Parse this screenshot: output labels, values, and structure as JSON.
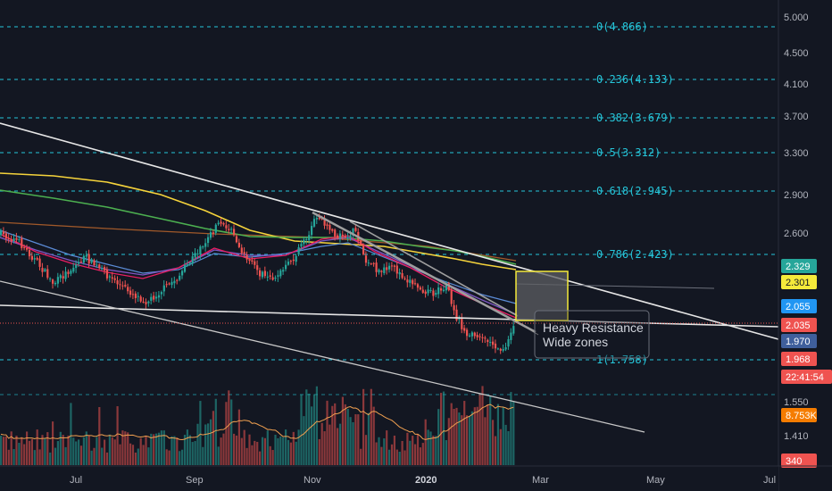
{
  "chart_data": {
    "type": "candlestick",
    "symbol_note": "",
    "y_axis": {
      "scale": "log",
      "ticks": [
        "5.000",
        "4.500",
        "4.100",
        "3.700",
        "3.300",
        "2.900",
        "2.600",
        "1.550",
        "1.410"
      ]
    },
    "x_axis": {
      "ticks": [
        {
          "label": "Jul",
          "bold": false
        },
        {
          "label": "Sep",
          "bold": false
        },
        {
          "label": "Nov",
          "bold": false
        },
        {
          "label": "2020",
          "bold": true
        },
        {
          "label": "Mar",
          "bold": false
        },
        {
          "label": "May",
          "bold": false
        },
        {
          "label": "Jul",
          "bold": false
        }
      ]
    },
    "fibonacci": {
      "color": "#26c6da",
      "levels": [
        {
          "label": "0(4.866)",
          "ratio": 0,
          "price": 4.866
        },
        {
          "label": "0.236(4.133)",
          "ratio": 0.236,
          "price": 4.133
        },
        {
          "label": "0.382(3.679)",
          "ratio": 0.382,
          "price": 3.679
        },
        {
          "label": "0.5(3.312)",
          "ratio": 0.5,
          "price": 3.312
        },
        {
          "label": "0.618(2.945)",
          "ratio": 0.618,
          "price": 2.945
        },
        {
          "label": "0.786(2.423)",
          "ratio": 0.786,
          "price": 2.423
        },
        {
          "label": "1(1.758)",
          "ratio": 1,
          "price": 1.758
        }
      ]
    },
    "price_badges": [
      {
        "label": "2.329",
        "bg": "#26a69a",
        "fg": "#ffffff"
      },
      {
        "label": "2.301",
        "bg": "#f5ea3b",
        "fg": "#131722"
      },
      {
        "label": "2.055",
        "bg": "#2196f3",
        "fg": "#ffffff"
      },
      {
        "label": "2.035",
        "bg": "#ef5350",
        "fg": "#ffffff"
      },
      {
        "label": "1.970",
        "bg": "#3f5f9c",
        "fg": "#ffffff"
      },
      {
        "label": "1.968",
        "bg": "#ef5350",
        "fg": "#ffffff"
      },
      {
        "label": "22:41:54",
        "bg": "#ef5350",
        "fg": "#ffffff"
      },
      {
        "label": "8.753K",
        "bg": "#f57c00",
        "fg": "#ffffff"
      },
      {
        "label": "340",
        "bg": "#ef5350",
        "fg": "#ffffff"
      }
    ],
    "annotation": {
      "lines": [
        "Heavy Resistance",
        "Wide zones"
      ]
    },
    "resistance_zone_color": "#f5ea3b",
    "colors": {
      "background": "#131722",
      "up": "#26a69a",
      "down": "#ef5350",
      "ma_yellow": "#f5d33b",
      "ma_green": "#4caf50",
      "ma_orange": "#a1592a",
      "ma_purple": "#7e57c2",
      "ma_pink": "#e91e63",
      "ma_blue": "#5b8bd6",
      "trendline": "#e0e0e0",
      "volume_ma": "#f0a050"
    }
  }
}
